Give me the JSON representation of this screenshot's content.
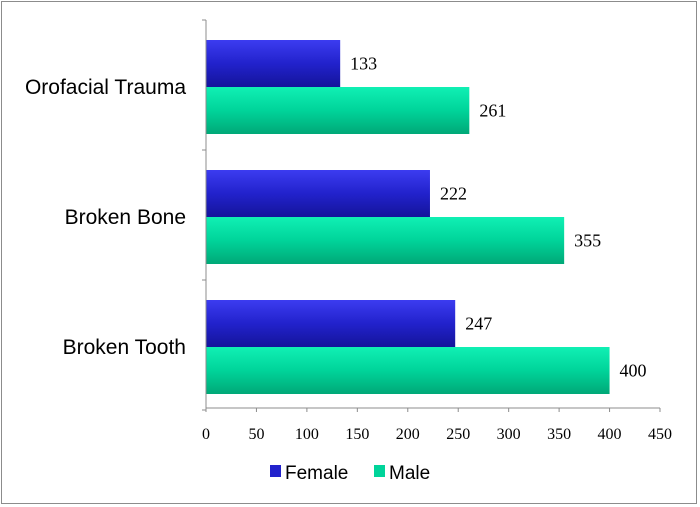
{
  "chart_data": {
    "type": "bar",
    "orientation": "horizontal",
    "categories": [
      "Orofacial Trauma",
      "Broken Bone",
      "Broken Tooth"
    ],
    "series": [
      {
        "name": "Female",
        "values": [
          133,
          222,
          247
        ],
        "color": "#2222cc"
      },
      {
        "name": "Male",
        "values": [
          261,
          355,
          400
        ],
        "color": "#00d49a"
      }
    ],
    "xlim": [
      0,
      450
    ],
    "xticks": [
      0,
      50,
      100,
      150,
      200,
      250,
      300,
      350,
      400,
      450
    ],
    "grid": false,
    "legend_position": "bottom",
    "title": "",
    "xlabel": "",
    "ylabel": ""
  }
}
